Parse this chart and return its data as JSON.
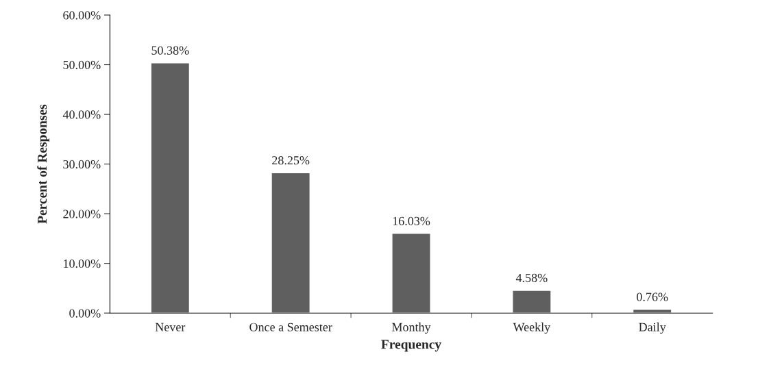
{
  "chart_data": {
    "type": "bar",
    "xlabel": "Frequency",
    "ylabel": "Percent of Responses",
    "categories": [
      "Never",
      "Once a Semester",
      "Monthy",
      "Weekly",
      "Daily"
    ],
    "values": [
      50.38,
      28.25,
      16.03,
      4.58,
      0.76
    ],
    "value_labels": [
      "50.38%",
      "28.25%",
      "16.03%",
      "4.58%",
      "0.76%"
    ],
    "color": "#5f5f5f",
    "ylim": [
      0,
      60
    ],
    "yticks": [
      {
        "value": 0,
        "label": "0.00%"
      },
      {
        "value": 10,
        "label": "10.00%"
      },
      {
        "value": 20,
        "label": "20.00%"
      },
      {
        "value": 30,
        "label": "30.00%"
      },
      {
        "value": 40,
        "label": "40.00%"
      },
      {
        "value": 50,
        "label": "50.00%"
      },
      {
        "value": 60,
        "label": "60.00%"
      }
    ],
    "grid": false,
    "legend": false
  }
}
